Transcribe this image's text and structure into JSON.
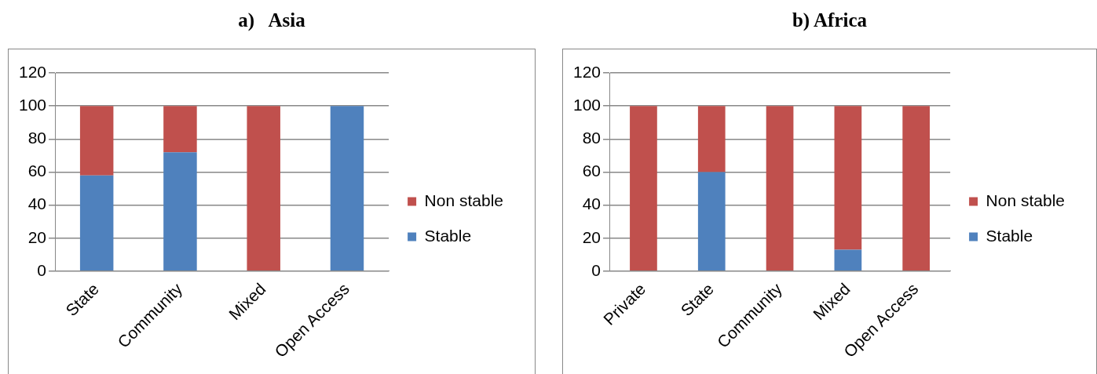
{
  "chart_data": [
    {
      "type": "bar",
      "title": "a)   Asia",
      "categories": [
        "State",
        "Community",
        "Mixed",
        "Open Access"
      ],
      "stacked": true,
      "ylim": [
        0,
        120
      ],
      "yticks": [
        0,
        20,
        40,
        60,
        80,
        100,
        120
      ],
      "grid": "y",
      "legend": "right",
      "series": [
        {
          "name": "Stable",
          "color": "#4f81bd",
          "values": [
            58,
            72,
            0,
            100
          ]
        },
        {
          "name": "Non stable",
          "color": "#c0504d",
          "values": [
            42,
            28,
            100,
            0
          ]
        }
      ]
    },
    {
      "type": "bar",
      "title": "b) Africa",
      "categories": [
        "Private",
        "State",
        "Community",
        "Mixed",
        "Open Access"
      ],
      "stacked": true,
      "ylim": [
        0,
        120
      ],
      "yticks": [
        0,
        20,
        40,
        60,
        80,
        100,
        120
      ],
      "grid": "y",
      "legend": "right",
      "series": [
        {
          "name": "Stable",
          "color": "#4f81bd",
          "values": [
            0,
            60,
            0,
            13,
            0
          ]
        },
        {
          "name": "Non stable",
          "color": "#c0504d",
          "values": [
            100,
            40,
            100,
            87,
            100
          ]
        }
      ]
    }
  ]
}
